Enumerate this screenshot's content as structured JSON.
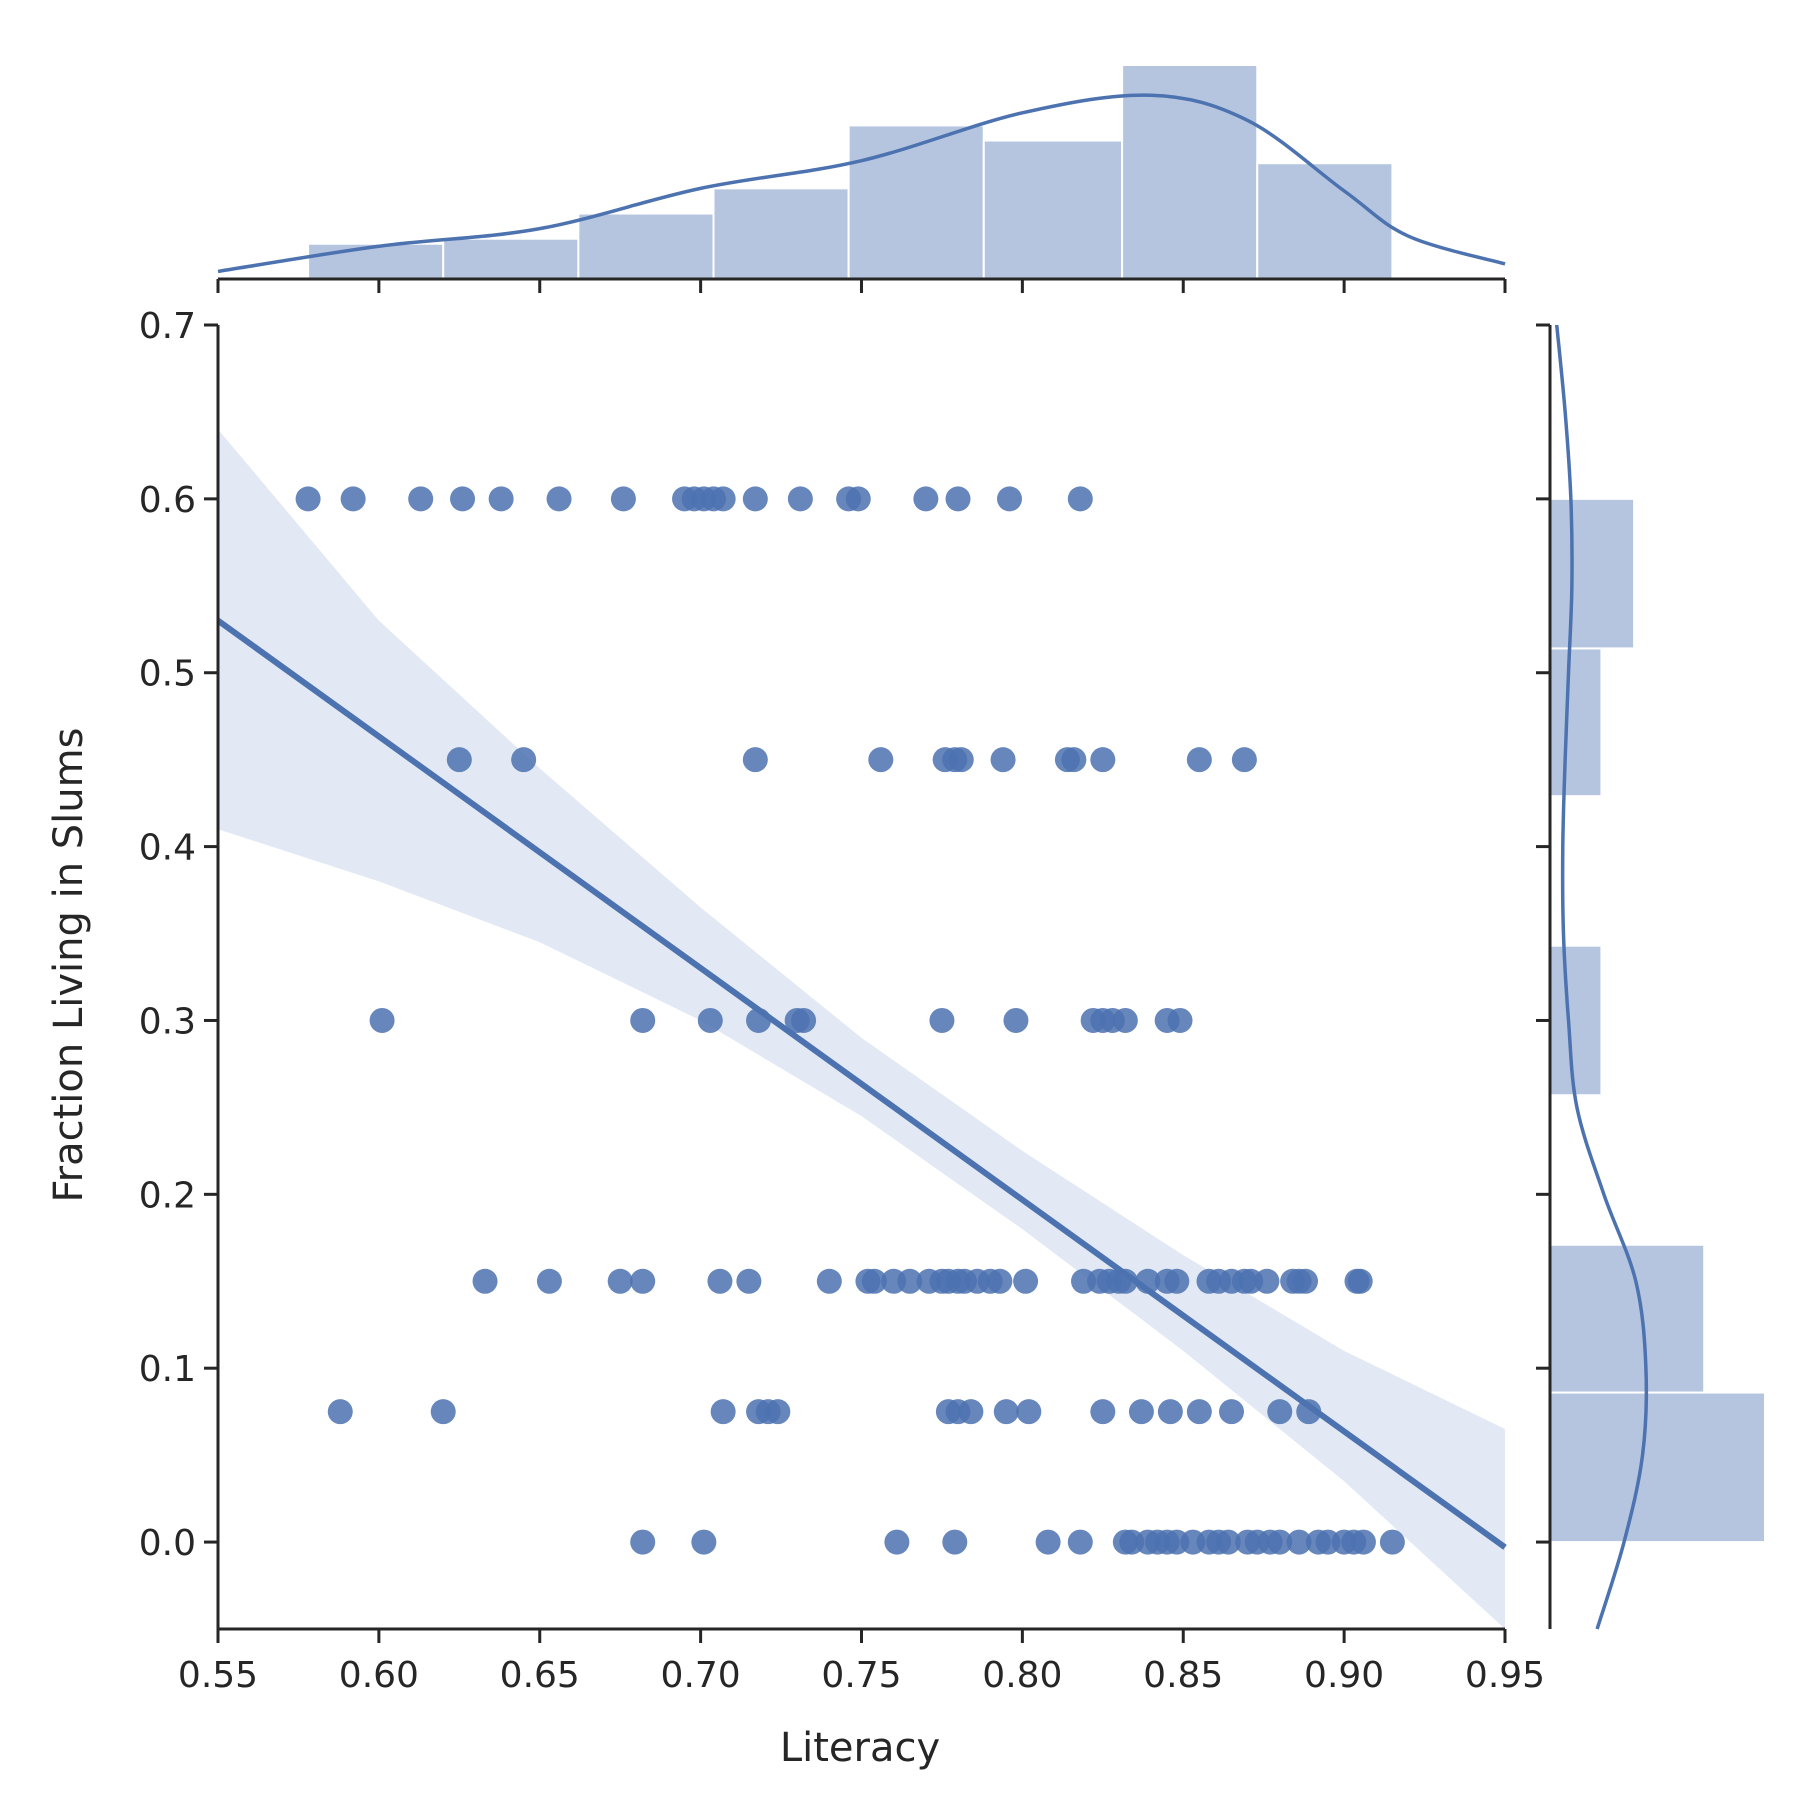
{
  "chart_data": {
    "type": "scatter",
    "title": "",
    "xlabel": "Literacy",
    "ylabel": "Fraction Living in Slums",
    "xlim": [
      0.55,
      0.95
    ],
    "ylim": [
      -0.05,
      0.7
    ],
    "x_ticks": [
      "0.55",
      "0.60",
      "0.65",
      "0.70",
      "0.75",
      "0.80",
      "0.85",
      "0.90",
      "0.95"
    ],
    "y_ticks": [
      "0.0",
      "0.1",
      "0.2",
      "0.3",
      "0.4",
      "0.5",
      "0.6",
      "0.7"
    ],
    "grid": false,
    "colors": {
      "points": "#4c72b0",
      "regression_line": "#4c72b0",
      "ci_band": "#dde5f2",
      "hist_bars": "#b5c5df",
      "kde": "#4c72b0",
      "axes": "#262626"
    },
    "points": [
      {
        "x": 0.578,
        "y": 0.6
      },
      {
        "x": 0.592,
        "y": 0.6
      },
      {
        "x": 0.613,
        "y": 0.6
      },
      {
        "x": 0.626,
        "y": 0.6
      },
      {
        "x": 0.638,
        "y": 0.6
      },
      {
        "x": 0.656,
        "y": 0.6
      },
      {
        "x": 0.676,
        "y": 0.6
      },
      {
        "x": 0.695,
        "y": 0.6
      },
      {
        "x": 0.698,
        "y": 0.6
      },
      {
        "x": 0.701,
        "y": 0.6
      },
      {
        "x": 0.704,
        "y": 0.6
      },
      {
        "x": 0.707,
        "y": 0.6
      },
      {
        "x": 0.717,
        "y": 0.6
      },
      {
        "x": 0.731,
        "y": 0.6
      },
      {
        "x": 0.746,
        "y": 0.6
      },
      {
        "x": 0.749,
        "y": 0.6
      },
      {
        "x": 0.77,
        "y": 0.6
      },
      {
        "x": 0.78,
        "y": 0.6
      },
      {
        "x": 0.796,
        "y": 0.6
      },
      {
        "x": 0.818,
        "y": 0.6
      },
      {
        "x": 0.625,
        "y": 0.45
      },
      {
        "x": 0.645,
        "y": 0.45
      },
      {
        "x": 0.717,
        "y": 0.45
      },
      {
        "x": 0.756,
        "y": 0.45
      },
      {
        "x": 0.776,
        "y": 0.45
      },
      {
        "x": 0.779,
        "y": 0.45
      },
      {
        "x": 0.781,
        "y": 0.45
      },
      {
        "x": 0.794,
        "y": 0.45
      },
      {
        "x": 0.814,
        "y": 0.45
      },
      {
        "x": 0.816,
        "y": 0.45
      },
      {
        "x": 0.825,
        "y": 0.45
      },
      {
        "x": 0.855,
        "y": 0.45
      },
      {
        "x": 0.869,
        "y": 0.45
      },
      {
        "x": 0.601,
        "y": 0.3
      },
      {
        "x": 0.682,
        "y": 0.3
      },
      {
        "x": 0.703,
        "y": 0.3
      },
      {
        "x": 0.718,
        "y": 0.3
      },
      {
        "x": 0.73,
        "y": 0.3
      },
      {
        "x": 0.732,
        "y": 0.3
      },
      {
        "x": 0.775,
        "y": 0.3
      },
      {
        "x": 0.798,
        "y": 0.3
      },
      {
        "x": 0.822,
        "y": 0.3
      },
      {
        "x": 0.825,
        "y": 0.3
      },
      {
        "x": 0.828,
        "y": 0.3
      },
      {
        "x": 0.832,
        "y": 0.3
      },
      {
        "x": 0.845,
        "y": 0.3
      },
      {
        "x": 0.849,
        "y": 0.3
      },
      {
        "x": 0.633,
        "y": 0.15
      },
      {
        "x": 0.653,
        "y": 0.15
      },
      {
        "x": 0.675,
        "y": 0.15
      },
      {
        "x": 0.682,
        "y": 0.15
      },
      {
        "x": 0.706,
        "y": 0.15
      },
      {
        "x": 0.715,
        "y": 0.15
      },
      {
        "x": 0.74,
        "y": 0.15
      },
      {
        "x": 0.752,
        "y": 0.15
      },
      {
        "x": 0.754,
        "y": 0.15
      },
      {
        "x": 0.76,
        "y": 0.15
      },
      {
        "x": 0.765,
        "y": 0.15
      },
      {
        "x": 0.771,
        "y": 0.15
      },
      {
        "x": 0.775,
        "y": 0.15
      },
      {
        "x": 0.777,
        "y": 0.15
      },
      {
        "x": 0.78,
        "y": 0.15
      },
      {
        "x": 0.782,
        "y": 0.15
      },
      {
        "x": 0.786,
        "y": 0.15
      },
      {
        "x": 0.79,
        "y": 0.15
      },
      {
        "x": 0.793,
        "y": 0.15
      },
      {
        "x": 0.801,
        "y": 0.15
      },
      {
        "x": 0.819,
        "y": 0.15
      },
      {
        "x": 0.824,
        "y": 0.15
      },
      {
        "x": 0.827,
        "y": 0.15
      },
      {
        "x": 0.83,
        "y": 0.15
      },
      {
        "x": 0.832,
        "y": 0.15
      },
      {
        "x": 0.839,
        "y": 0.15
      },
      {
        "x": 0.845,
        "y": 0.15
      },
      {
        "x": 0.848,
        "y": 0.15
      },
      {
        "x": 0.858,
        "y": 0.15
      },
      {
        "x": 0.861,
        "y": 0.15
      },
      {
        "x": 0.865,
        "y": 0.15
      },
      {
        "x": 0.869,
        "y": 0.15
      },
      {
        "x": 0.871,
        "y": 0.15
      },
      {
        "x": 0.876,
        "y": 0.15
      },
      {
        "x": 0.884,
        "y": 0.15
      },
      {
        "x": 0.886,
        "y": 0.15
      },
      {
        "x": 0.888,
        "y": 0.15
      },
      {
        "x": 0.904,
        "y": 0.15
      },
      {
        "x": 0.905,
        "y": 0.15
      },
      {
        "x": 0.588,
        "y": 0.075
      },
      {
        "x": 0.62,
        "y": 0.075
      },
      {
        "x": 0.707,
        "y": 0.075
      },
      {
        "x": 0.718,
        "y": 0.075
      },
      {
        "x": 0.721,
        "y": 0.075
      },
      {
        "x": 0.724,
        "y": 0.075
      },
      {
        "x": 0.777,
        "y": 0.075
      },
      {
        "x": 0.78,
        "y": 0.075
      },
      {
        "x": 0.784,
        "y": 0.075
      },
      {
        "x": 0.795,
        "y": 0.075
      },
      {
        "x": 0.802,
        "y": 0.075
      },
      {
        "x": 0.825,
        "y": 0.075
      },
      {
        "x": 0.837,
        "y": 0.075
      },
      {
        "x": 0.846,
        "y": 0.075
      },
      {
        "x": 0.855,
        "y": 0.075
      },
      {
        "x": 0.865,
        "y": 0.075
      },
      {
        "x": 0.88,
        "y": 0.075
      },
      {
        "x": 0.889,
        "y": 0.075
      },
      {
        "x": 0.682,
        "y": 0.0
      },
      {
        "x": 0.701,
        "y": 0.0
      },
      {
        "x": 0.761,
        "y": 0.0
      },
      {
        "x": 0.779,
        "y": 0.0
      },
      {
        "x": 0.808,
        "y": 0.0
      },
      {
        "x": 0.818,
        "y": 0.0
      },
      {
        "x": 0.832,
        "y": 0.0
      },
      {
        "x": 0.834,
        "y": 0.0
      },
      {
        "x": 0.839,
        "y": 0.0
      },
      {
        "x": 0.842,
        "y": 0.0
      },
      {
        "x": 0.845,
        "y": 0.0
      },
      {
        "x": 0.848,
        "y": 0.0
      },
      {
        "x": 0.853,
        "y": 0.0
      },
      {
        "x": 0.858,
        "y": 0.0
      },
      {
        "x": 0.861,
        "y": 0.0
      },
      {
        "x": 0.864,
        "y": 0.0
      },
      {
        "x": 0.87,
        "y": 0.0
      },
      {
        "x": 0.873,
        "y": 0.0
      },
      {
        "x": 0.877,
        "y": 0.0
      },
      {
        "x": 0.88,
        "y": 0.0
      },
      {
        "x": 0.886,
        "y": 0.0
      },
      {
        "x": 0.892,
        "y": 0.0
      },
      {
        "x": 0.895,
        "y": 0.0
      },
      {
        "x": 0.9,
        "y": 0.0
      },
      {
        "x": 0.903,
        "y": 0.0
      },
      {
        "x": 0.906,
        "y": 0.0
      },
      {
        "x": 0.915,
        "y": 0.0
      }
    ],
    "regression_line": [
      {
        "x": 0.55,
        "y": 0.53
      },
      {
        "x": 0.95,
        "y": -0.003
      }
    ],
    "ci_band": [
      {
        "x": 0.55,
        "lo": 0.41,
        "hi": 0.64
      },
      {
        "x": 0.6,
        "lo": 0.38,
        "hi": 0.53
      },
      {
        "x": 0.65,
        "lo": 0.345,
        "hi": 0.445
      },
      {
        "x": 0.7,
        "lo": 0.3,
        "hi": 0.365
      },
      {
        "x": 0.75,
        "lo": 0.245,
        "hi": 0.29
      },
      {
        "x": 0.8,
        "lo": 0.18,
        "hi": 0.225
      },
      {
        "x": 0.85,
        "lo": 0.11,
        "hi": 0.165
      },
      {
        "x": 0.9,
        "lo": 0.035,
        "hi": 0.11
      },
      {
        "x": 0.95,
        "lo": -0.05,
        "hi": 0.065
      }
    ],
    "marginal_x_hist": {
      "bin_edges": [
        0.578,
        0.62,
        0.662,
        0.704,
        0.746,
        0.788,
        0.831,
        0.873,
        0.915
      ],
      "heights": [
        1.4,
        1.6,
        2.6,
        3.6,
        6.1,
        5.5,
        8.5,
        4.6
      ]
    },
    "marginal_x_kde": [
      {
        "x": 0.55,
        "d": 0.3
      },
      {
        "x": 0.6,
        "d": 1.3
      },
      {
        "x": 0.65,
        "d": 2.0
      },
      {
        "x": 0.7,
        "d": 3.6
      },
      {
        "x": 0.75,
        "d": 4.7
      },
      {
        "x": 0.8,
        "d": 6.6
      },
      {
        "x": 0.84,
        "d": 7.3
      },
      {
        "x": 0.87,
        "d": 6.3
      },
      {
        "x": 0.9,
        "d": 3.5
      },
      {
        "x": 0.92,
        "d": 1.7
      },
      {
        "x": 0.95,
        "d": 0.6
      }
    ],
    "marginal_y_hist": {
      "bin_edges": [
        0.0,
        0.086,
        0.171,
        0.257,
        0.343,
        0.429,
        0.514,
        0.6
      ],
      "heights": [
        4.6,
        3.3,
        0.0,
        1.1,
        0.0,
        1.1,
        1.8
      ]
    },
    "marginal_y_kde": [
      {
        "y": -0.05,
        "d": 1.4
      },
      {
        "y": 0.0,
        "d": 2.2
      },
      {
        "y": 0.05,
        "d": 2.75
      },
      {
        "y": 0.1,
        "d": 2.85
      },
      {
        "y": 0.15,
        "d": 2.55
      },
      {
        "y": 0.2,
        "d": 1.6
      },
      {
        "y": 0.25,
        "d": 0.8
      },
      {
        "y": 0.3,
        "d": 0.55
      },
      {
        "y": 0.35,
        "d": 0.4
      },
      {
        "y": 0.4,
        "d": 0.38
      },
      {
        "y": 0.45,
        "d": 0.45
      },
      {
        "y": 0.5,
        "d": 0.55
      },
      {
        "y": 0.55,
        "d": 0.65
      },
      {
        "y": 0.6,
        "d": 0.62
      },
      {
        "y": 0.65,
        "d": 0.45
      },
      {
        "y": 0.7,
        "d": 0.2
      }
    ]
  }
}
